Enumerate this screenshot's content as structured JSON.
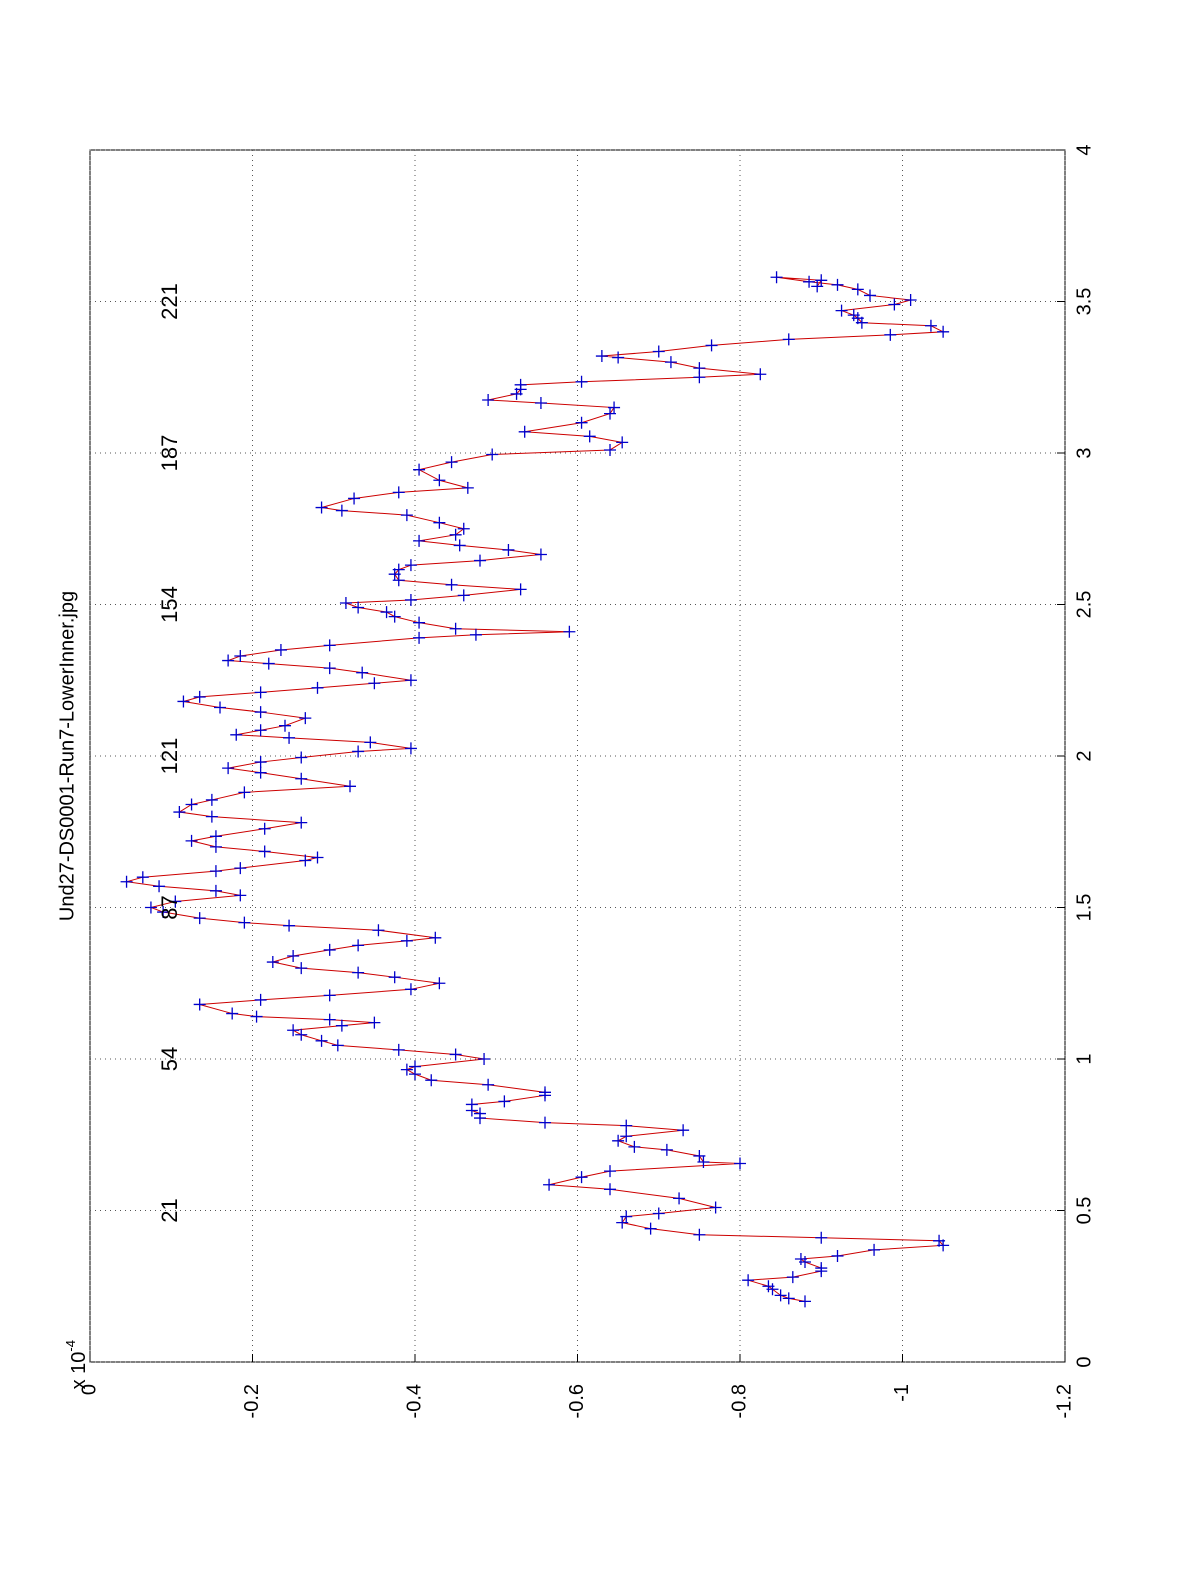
{
  "chart_data": {
    "type": "line",
    "title": "Und27-DS0001-Run7-LowerInner.jpg",
    "y_multiplier": {
      "base": "x 10",
      "exponent": "-4"
    },
    "line_color": "#cc0000",
    "marker_color": "#0000cc",
    "grid": true,
    "xlim": [
      0,
      4
    ],
    "xticks": [
      0,
      0.5,
      1,
      1.5,
      2,
      2.5,
      3,
      3.5,
      4
    ],
    "ylim": [
      -1.2,
      0
    ],
    "yticks": [
      0,
      -0.2,
      -0.4,
      -0.6,
      -0.8,
      -1,
      -1.2
    ],
    "annotations": [
      {
        "text": "21",
        "x": 0.5,
        "y": -0.1
      },
      {
        "text": "54",
        "x": 1,
        "y": -0.1
      },
      {
        "text": "87",
        "x": 1.5,
        "y": -0.1
      },
      {
        "text": "121",
        "x": 2,
        "y": -0.1
      },
      {
        "text": "154",
        "x": 2.5,
        "y": -0.1
      },
      {
        "text": "187",
        "x": 3,
        "y": -0.1
      },
      {
        "text": "221",
        "x": 3.5,
        "y": -0.1
      }
    ],
    "x": [
      0.2,
      0.21,
      0.22,
      0.24,
      0.25,
      0.27,
      0.28,
      0.3,
      0.31,
      0.33,
      0.34,
      0.35,
      0.37,
      0.385,
      0.4,
      0.41,
      0.42,
      0.44,
      0.46,
      0.48,
      0.49,
      0.51,
      0.54,
      0.57,
      0.585,
      0.61,
      0.63,
      0.655,
      0.66,
      0.68,
      0.7,
      0.71,
      0.73,
      0.745,
      0.765,
      0.78,
      0.79,
      0.805,
      0.82,
      0.83,
      0.85,
      0.86,
      0.88,
      0.89,
      0.915,
      0.93,
      0.95,
      0.965,
      0.975,
      1.0,
      1.015,
      1.03,
      1.045,
      1.06,
      1.08,
      1.095,
      1.11,
      1.12,
      1.13,
      1.14,
      1.15,
      1.18,
      1.195,
      1.21,
      1.23,
      1.25,
      1.27,
      1.285,
      1.3,
      1.32,
      1.34,
      1.36,
      1.375,
      1.39,
      1.4,
      1.425,
      1.44,
      1.45,
      1.465,
      1.485,
      1.5,
      1.52,
      1.54,
      1.555,
      1.57,
      1.585,
      1.6,
      1.62,
      1.63,
      1.655,
      1.665,
      1.685,
      1.7,
      1.72,
      1.735,
      1.76,
      1.78,
      1.8,
      1.815,
      1.84,
      1.855,
      1.88,
      1.9,
      1.925,
      1.945,
      1.96,
      1.98,
      1.995,
      2.015,
      2.025,
      2.045,
      2.06,
      2.07,
      2.085,
      2.1,
      2.125,
      2.145,
      2.16,
      2.18,
      2.195,
      2.21,
      2.225,
      2.24,
      2.25,
      2.275,
      2.29,
      2.305,
      2.315,
      2.33,
      2.35,
      2.365,
      2.39,
      2.4,
      2.41,
      2.42,
      2.44,
      2.46,
      2.475,
      2.49,
      2.505,
      2.515,
      2.53,
      2.55,
      2.565,
      2.58,
      2.6,
      2.615,
      2.63,
      2.645,
      2.665,
      2.68,
      2.695,
      2.71,
      2.73,
      2.75,
      2.77,
      2.795,
      2.81,
      2.82,
      2.85,
      2.87,
      2.885,
      2.91,
      2.945,
      2.97,
      2.995,
      3.01,
      3.035,
      3.055,
      3.07,
      3.1,
      3.13,
      3.15,
      3.165,
      3.175,
      3.195,
      3.21,
      3.225,
      3.235,
      3.25,
      3.26,
      3.28,
      3.3,
      3.315,
      3.32,
      3.335,
      3.355,
      3.375,
      3.39,
      3.4,
      3.42,
      3.43,
      3.445,
      3.455,
      3.47,
      3.49,
      3.505,
      3.52,
      3.54,
      3.555,
      3.565,
      3.58,
      3.57,
      3.55
    ],
    "values": [
      -0.88,
      -0.86,
      -0.85,
      -0.84,
      -0.835,
      -0.81,
      -0.865,
      -0.9,
      -0.9,
      -0.88,
      -0.875,
      -0.92,
      -0.965,
      -1.05,
      -1.045,
      -0.9,
      -0.75,
      -0.69,
      -0.655,
      -0.66,
      -0.7,
      -0.77,
      -0.725,
      -0.64,
      -0.565,
      -0.605,
      -0.64,
      -0.8,
      -0.755,
      -0.75,
      -0.71,
      -0.67,
      -0.65,
      -0.66,
      -0.73,
      -0.66,
      -0.56,
      -0.48,
      -0.48,
      -0.47,
      -0.47,
      -0.51,
      -0.56,
      -0.56,
      -0.49,
      -0.42,
      -0.4,
      -0.39,
      -0.4,
      -0.485,
      -0.45,
      -0.38,
      -0.305,
      -0.285,
      -0.26,
      -0.25,
      -0.31,
      -0.35,
      -0.295,
      -0.205,
      -0.175,
      -0.135,
      -0.21,
      -0.295,
      -0.395,
      -0.43,
      -0.375,
      -0.33,
      -0.26,
      -0.225,
      -0.25,
      -0.295,
      -0.33,
      -0.39,
      -0.425,
      -0.355,
      -0.245,
      -0.19,
      -0.135,
      -0.09,
      -0.075,
      -0.105,
      -0.185,
      -0.155,
      -0.085,
      -0.045,
      -0.065,
      -0.155,
      -0.185,
      -0.265,
      -0.28,
      -0.215,
      -0.155,
      -0.125,
      -0.155,
      -0.215,
      -0.26,
      -0.15,
      -0.11,
      -0.125,
      -0.15,
      -0.19,
      -0.32,
      -0.26,
      -0.21,
      -0.17,
      -0.21,
      -0.26,
      -0.33,
      -0.395,
      -0.345,
      -0.245,
      -0.18,
      -0.21,
      -0.24,
      -0.265,
      -0.21,
      -0.16,
      -0.115,
      -0.135,
      -0.21,
      -0.28,
      -0.35,
      -0.395,
      -0.335,
      -0.295,
      -0.22,
      -0.17,
      -0.185,
      -0.235,
      -0.295,
      -0.405,
      -0.475,
      -0.59,
      -0.45,
      -0.405,
      -0.375,
      -0.365,
      -0.33,
      -0.315,
      -0.395,
      -0.46,
      -0.53,
      -0.445,
      -0.38,
      -0.375,
      -0.38,
      -0.395,
      -0.48,
      -0.555,
      -0.515,
      -0.455,
      -0.405,
      -0.45,
      -0.46,
      -0.43,
      -0.39,
      -0.31,
      -0.285,
      -0.325,
      -0.38,
      -0.465,
      -0.43,
      -0.405,
      -0.445,
      -0.495,
      -0.64,
      -0.655,
      -0.615,
      -0.535,
      -0.605,
      -0.64,
      -0.645,
      -0.555,
      -0.49,
      -0.525,
      -0.53,
      -0.53,
      -0.605,
      -0.75,
      -0.825,
      -0.75,
      -0.715,
      -0.65,
      -0.63,
      -0.7,
      -0.765,
      -0.86,
      -0.985,
      -1.05,
      -1.035,
      -0.95,
      -0.945,
      -0.94,
      -0.925,
      -0.99,
      -1.01,
      -0.96,
      -0.945,
      -0.92,
      -0.885,
      -0.845,
      -0.9,
      -0.895
    ]
  }
}
